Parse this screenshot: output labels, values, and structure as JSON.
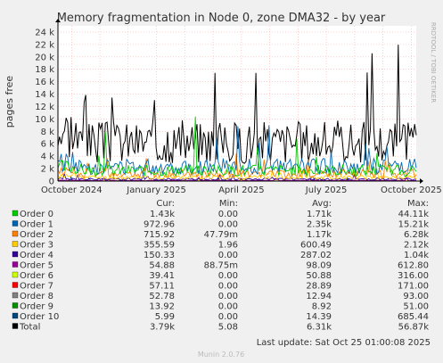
{
  "chart_data": {
    "type": "line",
    "title": "Memory fragmentation in Node 0, zone DMA32 - by year",
    "ylabel": "pages free",
    "side_text": "RRDTOOL / TOBI OETIKER",
    "ylim": [
      0,
      25000
    ],
    "y_ticks": [
      0,
      2000,
      4000,
      6000,
      8000,
      10000,
      12000,
      14000,
      16000,
      18000,
      20000,
      22000,
      24000
    ],
    "y_tick_labels": [
      "0",
      "2 k",
      "4 k",
      "6 k",
      "8 k",
      "10 k",
      "12 k",
      "14 k",
      "16 k",
      "18 k",
      "20 k",
      "22 k",
      "24 k"
    ],
    "x_tick_labels": [
      "October 2024",
      "January 2025",
      "April 2025",
      "July 2025",
      "October 2025"
    ],
    "x_tick_positions": [
      0.038,
      0.275,
      0.512,
      0.749,
      0.986
    ],
    "grid": true,
    "legend_headers": [
      "Cur:",
      "Min:",
      "Avg:",
      "Max:"
    ],
    "series": [
      {
        "name": "Order 0",
        "color": "#00cc00",
        "cur": "1.43k",
        "min": "0.00",
        "avg": "1.71k",
        "max": "44.11k",
        "base": 1710,
        "spike": 13000
      },
      {
        "name": "Order 1",
        "color": "#0066b3",
        "cur": "972.96",
        "min": "0.00",
        "avg": "2.35k",
        "max": "15.21k",
        "base": 2350,
        "spike": 9000
      },
      {
        "name": "Order 2",
        "color": "#ff8000",
        "cur": "715.92",
        "min": "47.79m",
        "avg": "1.17k",
        "max": "6.28k",
        "base": 1170,
        "spike": 4500
      },
      {
        "name": "Order 3",
        "color": "#ffcc00",
        "cur": "355.59",
        "min": "1.96",
        "avg": "600.49",
        "max": "2.12k",
        "base": 600,
        "spike": 2100
      },
      {
        "name": "Order 4",
        "color": "#330099",
        "cur": "150.33",
        "min": "0.00",
        "avg": "287.02",
        "max": "1.04k",
        "base": 287,
        "spike": 1000
      },
      {
        "name": "Order 5",
        "color": "#990099",
        "cur": "54.88",
        "min": "88.75m",
        "avg": "98.09",
        "max": "612.80",
        "base": 98,
        "spike": 600
      },
      {
        "name": "Order 6",
        "color": "#ccff00",
        "cur": "39.41",
        "min": "0.00",
        "avg": "50.88",
        "max": "316.00",
        "base": 51,
        "spike": 316
      },
      {
        "name": "Order 7",
        "color": "#ff0000",
        "cur": "57.11",
        "min": "0.00",
        "avg": "28.89",
        "max": "171.00",
        "base": 29,
        "spike": 171
      },
      {
        "name": "Order 8",
        "color": "#808080",
        "cur": "52.78",
        "min": "0.00",
        "avg": "12.94",
        "max": "93.00",
        "base": 13,
        "spike": 93
      },
      {
        "name": "Order 9",
        "color": "#008f00",
        "cur": "13.92",
        "min": "0.00",
        "avg": "8.92",
        "max": "51.00",
        "base": 9,
        "spike": 51
      },
      {
        "name": "Order 10",
        "color": "#00487d",
        "cur": "5.99",
        "min": "0.00",
        "avg": "14.39",
        "max": "685.44",
        "base": 14,
        "spike": 685
      },
      {
        "name": "Total",
        "color": "#000000",
        "cur": "3.79k",
        "min": "5.08",
        "avg": "6.31k",
        "max": "56.87k",
        "base": 6310,
        "spike": 23000
      }
    ],
    "last_update": "Last update: Sat Oct 25 01:00:08 2025",
    "footer": "Munin 2.0.76"
  }
}
